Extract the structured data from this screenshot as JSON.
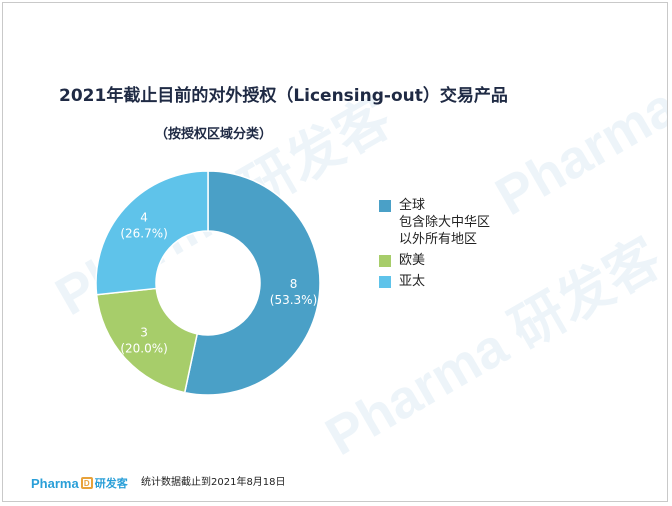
{
  "title": "2021年截止目前的对外授权（Licensing-out）交易产品",
  "subtitle": "（按授权区域分类）",
  "footnote": "统计数据截止到2021年8月18日",
  "logo": {
    "text": "Pharma",
    "cn": "研发客",
    "mark": "D"
  },
  "watermark": "Pharma 研发客",
  "colors": {
    "global": "#4aa0c7",
    "europe": "#a7cd6a",
    "asia": "#5fc3ea"
  },
  "chart_data": {
    "type": "pie",
    "donut": true,
    "categories": [
      "全球\n包含除大中华区\n以外所有地区",
      "欧美",
      "亚太"
    ],
    "values": [
      8,
      3,
      4
    ],
    "percent_labels": [
      "(53.3%)",
      "(20.0%)",
      "(26.7%)"
    ],
    "value_labels": [
      "8",
      "3",
      "4"
    ],
    "legend_position": "right"
  }
}
